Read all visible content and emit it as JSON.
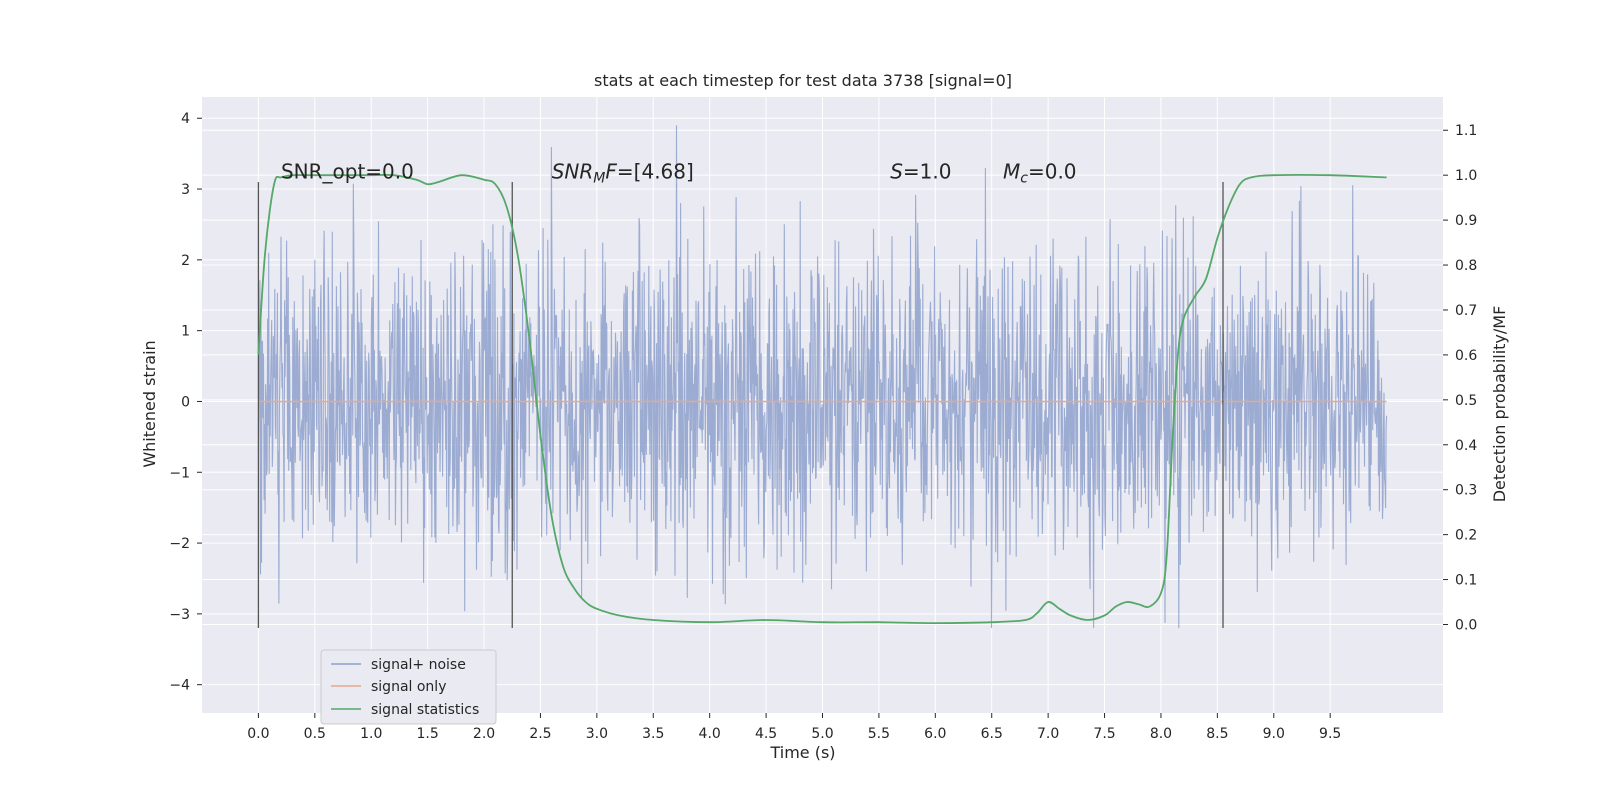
{
  "chart_data": {
    "type": "line",
    "title": "stats at each timestep for test data 3738 [signal=0]",
    "xlabel": "Time (s)",
    "ylabel": "Whitened strain",
    "y2label": "Detection probability/MF",
    "xlim": [
      -0.5,
      10.5
    ],
    "ylim": [
      -4.4,
      4.3
    ],
    "y2lim": [
      -0.197,
      1.174
    ],
    "x_ticks": [
      0.0,
      0.5,
      1.0,
      1.5,
      2.0,
      2.5,
      3.0,
      3.5,
      4.0,
      4.5,
      5.0,
      5.5,
      6.0,
      6.5,
      7.0,
      7.5,
      8.0,
      8.5,
      9.0,
      9.5
    ],
    "x_tick_labels": [
      "0.0",
      "0.5",
      "1.0",
      "1.5",
      "2.0",
      "2.5",
      "3.0",
      "3.5",
      "4.0",
      "4.5",
      "5.0",
      "5.5",
      "6.0",
      "6.5",
      "7.0",
      "7.5",
      "8.0",
      "8.5",
      "9.0",
      "9.5"
    ],
    "y_ticks": [
      4,
      3,
      2,
      1,
      0,
      -1,
      -2,
      -3,
      -4
    ],
    "y_tick_labels": [
      "4",
      "3",
      "2",
      "1",
      "0",
      "−1",
      "−2",
      "−3",
      "−4"
    ],
    "y2_ticks": [
      1.1,
      1.0,
      0.9,
      0.8,
      0.7,
      0.6,
      0.5,
      0.4,
      0.3,
      0.2,
      0.1,
      0.0
    ],
    "y2_tick_labels": [
      "1.1",
      "1.0",
      "0.9",
      "0.8",
      "0.7",
      "0.6",
      "0.5",
      "0.4",
      "0.3",
      "0.2",
      "0.1",
      "0.0"
    ],
    "grid": true,
    "legend_position": "lower-left",
    "series": [
      {
        "name": "signal+ noise",
        "axis": "left",
        "color": "#8da0cb",
        "x_range": [
          0.0,
          10.0
        ],
        "envelope": [
          -3.2,
          3.9
        ],
        "typical_amplitude": 1.5
      },
      {
        "name": "signal only",
        "axis": "left",
        "color": "#e8a88a",
        "x": [
          0.0,
          10.0
        ],
        "y": [
          0.0,
          0.0
        ]
      },
      {
        "name": "signal statistics",
        "axis": "right",
        "color": "#55a868",
        "x": [
          0.0,
          0.05,
          0.1,
          0.15,
          0.2,
          0.3,
          0.5,
          0.8,
          1.0,
          1.2,
          1.4,
          1.5,
          1.6,
          1.8,
          2.0,
          2.1,
          2.2,
          2.3,
          2.4,
          2.5,
          2.6,
          2.7,
          2.8,
          2.9,
          3.0,
          3.2,
          3.5,
          4.0,
          4.5,
          5.0,
          5.5,
          6.0,
          6.5,
          6.8,
          6.9,
          7.0,
          7.1,
          7.2,
          7.35,
          7.5,
          7.6,
          7.7,
          7.8,
          7.9,
          8.0,
          8.05,
          8.1,
          8.15,
          8.2,
          8.3,
          8.4,
          8.5,
          8.6,
          8.7,
          8.8,
          9.0,
          9.5,
          10.0
        ],
        "y": [
          0.6,
          0.8,
          0.92,
          0.99,
          0.995,
          1.0,
          1.0,
          1.0,
          1.0,
          1.0,
          0.99,
          0.98,
          0.985,
          1.0,
          0.99,
          0.98,
          0.93,
          0.82,
          0.64,
          0.42,
          0.24,
          0.13,
          0.08,
          0.05,
          0.035,
          0.02,
          0.01,
          0.005,
          0.01,
          0.005,
          0.005,
          0.003,
          0.005,
          0.01,
          0.025,
          0.05,
          0.035,
          0.02,
          0.01,
          0.02,
          0.04,
          0.05,
          0.045,
          0.04,
          0.07,
          0.15,
          0.4,
          0.6,
          0.68,
          0.73,
          0.77,
          0.86,
          0.93,
          0.98,
          0.995,
          1.0,
          1.0,
          0.995
        ]
      }
    ],
    "vertical_lines": [
      0.0,
      2.25,
      8.55
    ],
    "vertical_line_range": [
      -3.2,
      3.1
    ],
    "annotations": [
      {
        "parts": [
          {
            "text": "SNR_opt=0.0",
            "style": "normal"
          }
        ],
        "x": 0.2,
        "y": 3.15
      },
      {
        "parts": [
          {
            "text": "SNR",
            "style": "italic"
          },
          {
            "text": "M",
            "style": "italic-sub"
          },
          {
            "text": "F",
            "style": "italic"
          },
          {
            "text": "=[4.68]",
            "style": "normal"
          }
        ],
        "x": 2.6,
        "y": 3.15
      },
      {
        "parts": [
          {
            "text": "S",
            "style": "italic"
          },
          {
            "text": "=1.0",
            "style": "normal"
          }
        ],
        "x": 5.6,
        "y": 3.15
      },
      {
        "parts": [
          {
            "text": "M",
            "style": "italic"
          },
          {
            "text": "c",
            "style": "italic-sub"
          },
          {
            "text": "=0.0",
            "style": "normal"
          }
        ],
        "x": 6.6,
        "y": 3.15
      }
    ]
  }
}
